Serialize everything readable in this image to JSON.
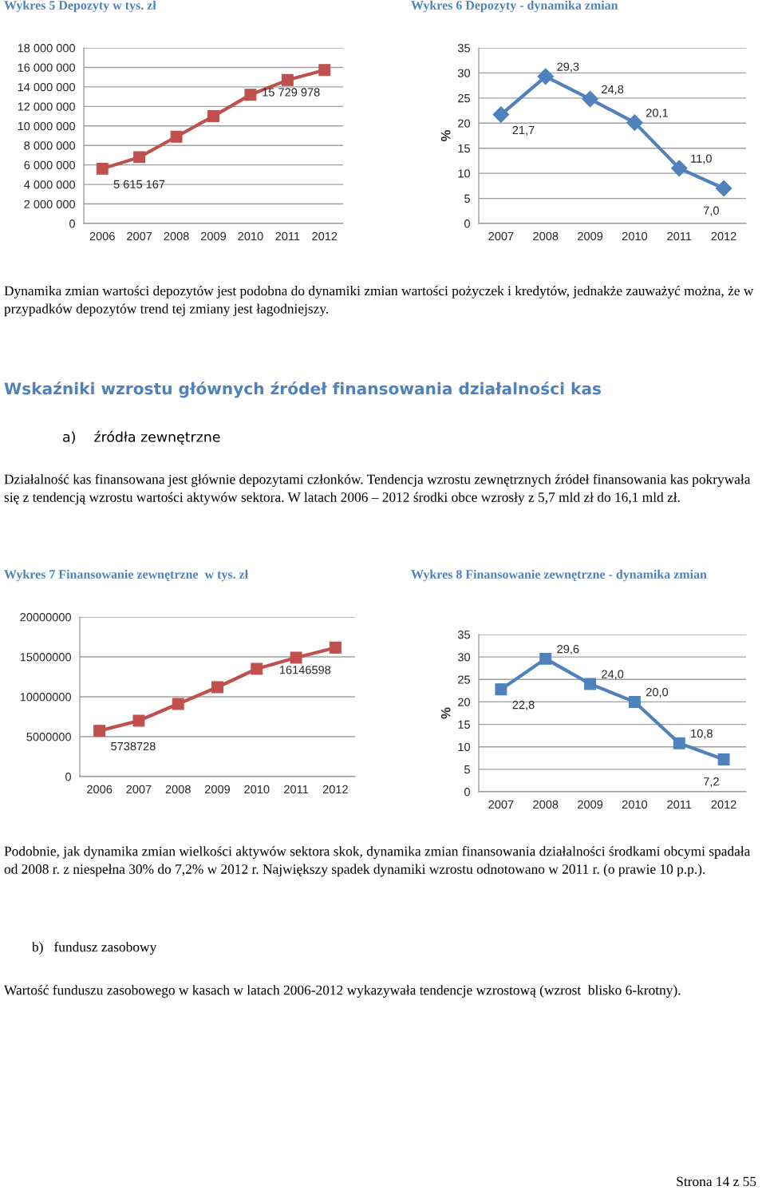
{
  "chart_data": [
    {
      "type": "line",
      "title": "Wykres 5 Depozyty w tys. zł",
      "categories": [
        "2006",
        "2007",
        "2008",
        "2009",
        "2010",
        "2011",
        "2012"
      ],
      "series": [
        {
          "color": "#c0504d",
          "values": [
            5615167,
            6800000,
            8900000,
            11000000,
            13200000,
            14700000,
            15729978
          ],
          "value_labels": [
            "5 615 167",
            null,
            null,
            null,
            null,
            null,
            "15 729 978"
          ]
        }
      ],
      "ylim": [
        0,
        18000000
      ],
      "yticks": [
        {
          "value": 0,
          "label": "0"
        },
        {
          "value": 2000000,
          "label": "2 000 000"
        },
        {
          "value": 4000000,
          "label": "4 000 000"
        },
        {
          "value": 6000000,
          "label": "6 000 000"
        },
        {
          "value": 8000000,
          "label": "8 000 000"
        },
        {
          "value": 10000000,
          "label": "10 000 000"
        },
        {
          "value": 12000000,
          "label": "12 000 000"
        },
        {
          "value": 14000000,
          "label": "14 000 000"
        },
        {
          "value": 16000000,
          "label": "16 000 000"
        },
        {
          "value": 18000000,
          "label": "18 000 000"
        }
      ],
      "grid": "y",
      "marker": "square",
      "line_style": "solid"
    },
    {
      "type": "line",
      "title": "Wykres 6 Depozyty - dynamika zmian",
      "ylabel": "%",
      "categories": [
        "2007",
        "2008",
        "2009",
        "2010",
        "2011",
        "2012"
      ],
      "series": [
        {
          "color": "#4f81bd",
          "values": [
            21.7,
            29.3,
            24.8,
            20.1,
            11.0,
            7.0
          ],
          "value_labels": [
            "21,7",
            "29,3",
            "24,8",
            "20,1",
            "11,0",
            "7,0"
          ]
        }
      ],
      "ylim": [
        0,
        35
      ],
      "yticks": [
        0,
        5,
        10,
        15,
        20,
        25,
        30,
        35
      ],
      "grid": "y",
      "marker": "diamond",
      "line_style": "solid",
      "annotations": [
        "Dynamika zmian wartości depozytów jest podobna do dynamiki zmian wartości pożyczek i kredytów, jednakże zauważyć można, że w przypadków depozytów trend tej zmiany jest łagodniejszy.",
        "Wskaźniki wzrostu głównych źródeł finansowania działalności kas",
        "a)    źródła zewnętrzne",
        "Działalność kas finansowana jest głównie depozytami członków. Tendencja wzrostu zewnętrznych źródeł finansowania kas pokrywała się z tendencją wzrostu wartości aktywów sektora. W latach 2006 – 2012 środki obce wzrosły z 5,7 mld zł do 16,1 mld zł."
      ]
    },
    {
      "type": "line",
      "title": "Wykres 7 Finansowanie zewnętrzne  w tys. zł",
      "categories": [
        "2006",
        "2007",
        "2008",
        "2009",
        "2010",
        "2011",
        "2012"
      ],
      "series": [
        {
          "color": "#c0504d",
          "values": [
            5738728,
            7000000,
            9100000,
            11200000,
            13500000,
            14900000,
            16146598
          ],
          "value_labels": [
            "5738728",
            null,
            null,
            null,
            null,
            null,
            "16146598"
          ]
        }
      ],
      "ylim": [
        0,
        20000000
      ],
      "yticks": [
        0,
        5000000,
        10000000,
        15000000,
        20000000
      ],
      "grid": "y",
      "marker": "square",
      "line_style": "solid"
    },
    {
      "type": "line",
      "title": "Wykres 8 Finansowanie zewnętrzne - dynamika zmian",
      "ylabel": "%",
      "categories": [
        "2007",
        "2008",
        "2009",
        "2010",
        "2011",
        "2012"
      ],
      "series": [
        {
          "color": "#4f81bd",
          "values": [
            22.8,
            29.6,
            24.0,
            20.0,
            10.8,
            7.2
          ],
          "value_labels": [
            "22,8",
            "29,6",
            "24,0",
            "20,0",
            "10,8",
            "7,2"
          ]
        }
      ],
      "ylim": [
        0,
        35
      ],
      "yticks": [
        0,
        5,
        10,
        15,
        20,
        25,
        30,
        35
      ],
      "grid": "y",
      "marker": "square",
      "line_style": "solid",
      "annotations": [
        "Podobnie, jak dynamika zmian wielkości aktywów sektora skok, dynamika zmian finansowania działalności środkami obcymi spadała od 2008 r. z niespełna 30% do 7,2% w 2012 r. Największy spadek dynamiki wzrostu odnotowano w 2011 r. (o prawie 10 p.p.).",
        "b)   fundusz zasobowy",
        "Wartość funduszu zasobowego w kasach w latach 2006-2012 wykazywała tendencje wzrostową (wzrost  blisko 6-krotny).",
        "Strona 14 z 55"
      ]
    }
  ]
}
